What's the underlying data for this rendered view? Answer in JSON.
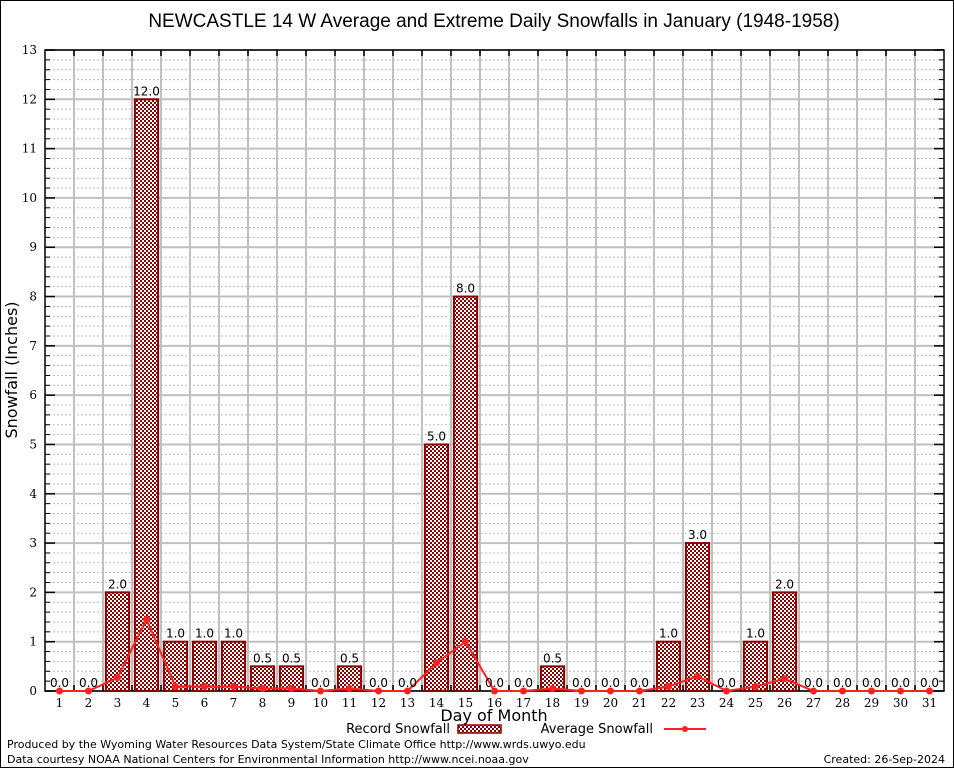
{
  "chart_data": {
    "type": "bar",
    "title": "NEWCASTLE 14 W Average and Extreme Daily Snowfalls in January (1948-1958)",
    "xlabel": "Day of Month",
    "ylabel": "Snowfall (Inches)",
    "ylim": [
      0,
      13
    ],
    "yticks": [
      0,
      1,
      2,
      3,
      4,
      5,
      6,
      7,
      8,
      9,
      10,
      11,
      12,
      13
    ],
    "grid": true,
    "categories": [
      "1",
      "2",
      "3",
      "4",
      "5",
      "6",
      "7",
      "8",
      "9",
      "10",
      "11",
      "12",
      "13",
      "14",
      "15",
      "16",
      "17",
      "18",
      "19",
      "20",
      "21",
      "22",
      "23",
      "24",
      "25",
      "26",
      "27",
      "28",
      "29",
      "30",
      "31"
    ],
    "series": [
      {
        "name": "Record Snowfall",
        "kind": "bar",
        "color": "#8b0000",
        "values": [
          0.0,
          0.0,
          2.0,
          12.0,
          1.0,
          1.0,
          1.0,
          0.5,
          0.5,
          0.0,
          0.5,
          0.0,
          0.0,
          5.0,
          8.0,
          0.0,
          0.0,
          0.5,
          0.0,
          0.0,
          0.0,
          1.0,
          3.0,
          0.0,
          1.0,
          2.0,
          0.0,
          0.0,
          0.0,
          0.0,
          0.0
        ],
        "labels": [
          "0.0",
          "0.0",
          "2.0",
          "12.0",
          "1.0",
          "1.0",
          "1.0",
          "0.5",
          "0.5",
          "0.0",
          "0.5",
          "0.0",
          "0.0",
          "5.0",
          "8.0",
          "0.0",
          "0.0",
          "0.5",
          "0.0",
          "0.0",
          "0.0",
          "1.0",
          "3.0",
          "0.0",
          "1.0",
          "2.0",
          "0.0",
          "0.0",
          "0.0",
          "0.0",
          "0.0"
        ]
      },
      {
        "name": "Average Snowfall",
        "kind": "line",
        "color": "#ff2020",
        "values": [
          0.0,
          0.0,
          0.27,
          1.45,
          0.09,
          0.09,
          0.09,
          0.05,
          0.05,
          0.0,
          0.05,
          0.0,
          0.0,
          0.57,
          1.0,
          0.0,
          0.0,
          0.05,
          0.0,
          0.0,
          0.0,
          0.09,
          0.3,
          0.0,
          0.09,
          0.25,
          0.0,
          0.0,
          0.0,
          0.0,
          0.0
        ]
      }
    ],
    "legend": {
      "placement": "bottom-center",
      "entries": [
        "Record Snowfall",
        "Average Snowfall"
      ]
    }
  },
  "footer": {
    "line1": "Produced by the Wyoming Water Resources Data System/State Climate Office http://www.wrds.uwyo.edu",
    "line2": "Data courtesy NOAA National Centers for Environmental Information http://www.ncei.noaa.gov",
    "created": "Created: 26-Sep-2024"
  }
}
